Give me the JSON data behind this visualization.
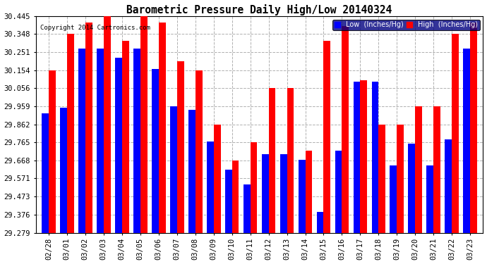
{
  "title": "Barometric Pressure Daily High/Low 20140324",
  "copyright": "Copyright 2014 Cartronics.com",
  "background_color": "#ffffff",
  "plot_bg_color": "#ffffff",
  "grid_color": "#b0b0b0",
  "ylim": [
    29.279,
    30.445
  ],
  "yticks": [
    29.279,
    29.376,
    29.473,
    29.571,
    29.668,
    29.765,
    29.862,
    29.959,
    30.056,
    30.154,
    30.251,
    30.348,
    30.445
  ],
  "dates": [
    "02/28",
    "03/01",
    "03/02",
    "03/03",
    "03/04",
    "03/05",
    "03/06",
    "03/07",
    "03/08",
    "03/09",
    "03/10",
    "03/11",
    "03/12",
    "03/13",
    "03/14",
    "03/15",
    "03/16",
    "03/17",
    "03/18",
    "03/19",
    "03/20",
    "03/21",
    "03/22",
    "03/23"
  ],
  "low_values": [
    29.921,
    29.95,
    30.27,
    30.27,
    30.22,
    30.27,
    30.16,
    29.96,
    29.94,
    29.77,
    29.62,
    29.54,
    29.7,
    29.7,
    29.67,
    29.39,
    29.72,
    30.09,
    30.09,
    29.64,
    29.76,
    29.64,
    29.78,
    30.27
  ],
  "high_values": [
    30.154,
    30.348,
    30.41,
    30.445,
    30.31,
    30.445,
    30.41,
    30.2,
    30.154,
    29.862,
    29.668,
    29.765,
    30.056,
    30.056,
    29.72,
    30.31,
    30.39,
    30.1,
    29.862,
    29.862,
    29.96,
    29.96,
    30.348,
    30.41
  ],
  "low_color": "#0000ff",
  "high_color": "#ff0000",
  "bar_width": 0.38,
  "legend_low": "Low  (Inches/Hg)",
  "legend_high": "High  (Inches/Hg)"
}
